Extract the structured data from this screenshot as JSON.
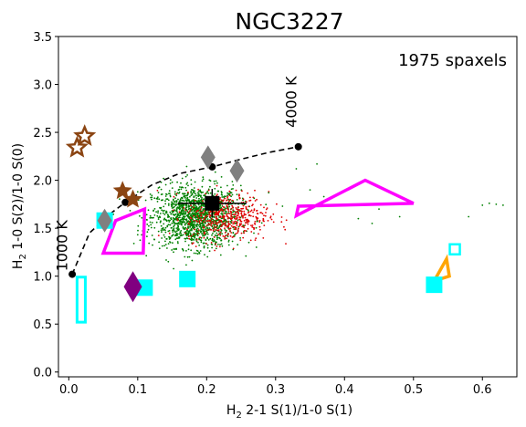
{
  "chart_data": {
    "type": "scatter",
    "title": "NGC3227",
    "annotation": "1975 spaxels",
    "xlabel": {
      "prefix": "H",
      "sub": "2",
      "rest": " 2-1 S(1)/1-0 S(1)"
    },
    "ylabel": {
      "prefix": "H",
      "sub": "2",
      "rest": " 1-0 S(2)/1-0 S(0)"
    },
    "xlim": [
      -0.015,
      0.65
    ],
    "ylim": [
      -0.05,
      3.5
    ],
    "xticks": [
      "0.0",
      "0.1",
      "0.2",
      "0.3",
      "0.4",
      "0.5",
      "0.6"
    ],
    "xtick_values": [
      0.0,
      0.1,
      0.2,
      0.3,
      0.4,
      0.5,
      0.6
    ],
    "yticks": [
      "0.0",
      "0.5",
      "1.0",
      "1.5",
      "2.0",
      "2.5",
      "3.0",
      "3.5"
    ],
    "ytick_values": [
      0.0,
      0.5,
      1.0,
      1.5,
      2.0,
      2.5,
      3.0,
      3.5
    ],
    "grid": false,
    "thermal_curve": {
      "x": [
        0.005,
        0.03,
        0.06,
        0.082,
        0.12,
        0.16,
        0.208,
        0.25,
        0.29,
        0.333
      ],
      "y": [
        1.02,
        1.45,
        1.65,
        1.77,
        1.95,
        2.07,
        2.14,
        2.22,
        2.29,
        2.35
      ],
      "markers_x": [
        0.005,
        0.082,
        0.208,
        0.333
      ],
      "markers_y": [
        1.02,
        1.77,
        2.14,
        2.35
      ],
      "labels": [
        {
          "text": "1000 K",
          "x": 0.0,
          "y": 1.05
        },
        {
          "text": "4000 K",
          "x": 0.333,
          "y": 2.55
        }
      ]
    },
    "spaxel_series": [
      {
        "color": "#008000",
        "count": 1500,
        "x_center": 0.185,
        "x_spread": 0.032,
        "y_center": 1.62,
        "y_spread": 0.16
      },
      {
        "color": "#e00000",
        "count": 475,
        "x_center": 0.23,
        "x_spread": 0.03,
        "y_center": 1.62,
        "y_spread": 0.13
      }
    ],
    "outlier_points": [
      {
        "x": 0.33,
        "y": 2.12
      },
      {
        "x": 0.36,
        "y": 2.17
      },
      {
        "x": 0.29,
        "y": 1.87
      },
      {
        "x": 0.35,
        "y": 1.9
      },
      {
        "x": 0.37,
        "y": 1.83
      },
      {
        "x": 0.31,
        "y": 1.73
      },
      {
        "x": 0.42,
        "y": 1.6
      },
      {
        "x": 0.44,
        "y": 1.55
      },
      {
        "x": 0.45,
        "y": 1.7
      },
      {
        "x": 0.48,
        "y": 1.62
      },
      {
        "x": 0.58,
        "y": 1.62
      },
      {
        "x": 0.6,
        "y": 1.74
      },
      {
        "x": 0.61,
        "y": 1.76
      },
      {
        "x": 0.62,
        "y": 1.75
      },
      {
        "x": 0.63,
        "y": 1.74
      },
      {
        "x": 0.1,
        "y": 1.88
      },
      {
        "x": 0.13,
        "y": 1.92
      },
      {
        "x": 0.12,
        "y": 1.8
      }
    ],
    "mean_point": {
      "x": 0.208,
      "y": 1.76,
      "xerr": 0.05,
      "yerr": 0.15
    },
    "cyan_squares": [
      {
        "x": 0.052,
        "y": 1.58
      },
      {
        "x": 0.11,
        "y": 0.88
      },
      {
        "x": 0.172,
        "y": 0.97
      },
      {
        "x": 0.53,
        "y": 0.91
      }
    ],
    "cyan_open_squares": [
      {
        "x": 0.56,
        "y": 1.28
      }
    ],
    "cyan_rectangle": {
      "x0": 0.012,
      "x1": 0.024,
      "y0": 0.52,
      "y1": 0.99
    },
    "grey_diamonds": [
      {
        "x": 0.052,
        "y": 1.58
      },
      {
        "x": 0.202,
        "y": 2.24
      },
      {
        "x": 0.244,
        "y": 2.1
      }
    ],
    "purple_diamonds": [
      {
        "x": 0.093,
        "y": 0.89
      }
    ],
    "brown_filled_stars": [
      {
        "x": 0.078,
        "y": 1.89
      },
      {
        "x": 0.093,
        "y": 1.8
      }
    ],
    "brown_open_stars": [
      {
        "x": 0.012,
        "y": 2.34
      },
      {
        "x": 0.023,
        "y": 2.46
      }
    ],
    "magenta_polygons": [
      [
        [
          0.05,
          1.24
        ],
        [
          0.068,
          1.58
        ],
        [
          0.11,
          1.7
        ],
        [
          0.108,
          1.24
        ]
      ],
      [
        [
          0.33,
          1.63
        ],
        [
          0.43,
          2.0
        ],
        [
          0.5,
          1.76
        ],
        [
          0.333,
          1.73
        ]
      ]
    ],
    "orange_polygon": [
      [
        0.53,
        0.95
      ],
      [
        0.548,
        1.18
      ],
      [
        0.552,
        1.0
      ]
    ],
    "colors": {
      "green": "#008000",
      "red": "#e00000",
      "cyan": "#00ffff",
      "grey": "#808080",
      "purple": "#800080",
      "brown": "#8b4513",
      "magenta": "#ff00ff",
      "orange": "#ffa500"
    }
  }
}
